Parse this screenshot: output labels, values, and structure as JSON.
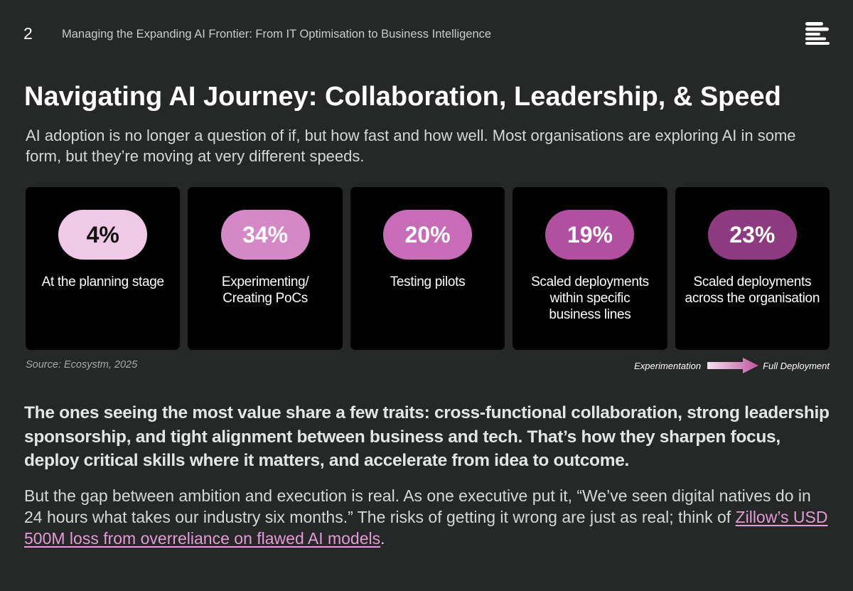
{
  "header": {
    "page_number": "2",
    "doc_title": "Managing the Expanding AI Frontier: From IT Optimisation to Business Intelligence",
    "logo_icon": "stacked-bars-logo"
  },
  "heading": "Navigating AI Journey: Collaboration, Leadership, & Speed",
  "intro": "AI adoption is no longer a question of if, but how fast and how well. Most organisations are exploring AI in some form, but they’re moving at very different speeds.",
  "stages": [
    {
      "value": "4%",
      "label": "At the planning stage",
      "pill_color": "#f0c9e6",
      "text_color": "#111111"
    },
    {
      "value": "34%",
      "label": "Experimenting/ Creating PoCs",
      "pill_color": "#d489c6",
      "text_color": "#ffffff"
    },
    {
      "value": "20%",
      "label": "Testing pilots",
      "pill_color": "#c86cb8",
      "text_color": "#ffffff"
    },
    {
      "value": "19%",
      "label": "Scaled deployments within specific business lines",
      "pill_color": "#b24fa0",
      "text_color": "#ffffff"
    },
    {
      "value": "23%",
      "label": "Scaled deployments across the organisation",
      "pill_color": "#8e3a80",
      "text_color": "#ffffff"
    }
  ],
  "source": "Source: Ecosystm, 2025",
  "scale": {
    "start_label": "Experimentation",
    "end_label": "Full Deployment"
  },
  "emphasis": "The ones seeing the most value share a few traits: cross-functional collaboration, strong leadership sponsorship, and tight alignment between business and tech. That’s how they sharpen focus, deploy critical skills where it matters, and accelerate from idea to outcome.",
  "closing": {
    "text": "But the gap between ambition and execution is real. As one executive put it, “We’ve seen digital natives do in 24 hours what takes our industry six months.” The risks of getting it wrong are just as real; think of ",
    "link_text": "Zillow’s USD 500M loss from overreliance on flawed AI models",
    "after_link": "."
  },
  "colors": {
    "background": "#252826",
    "card": "#000000",
    "link": "#e39ad6"
  }
}
